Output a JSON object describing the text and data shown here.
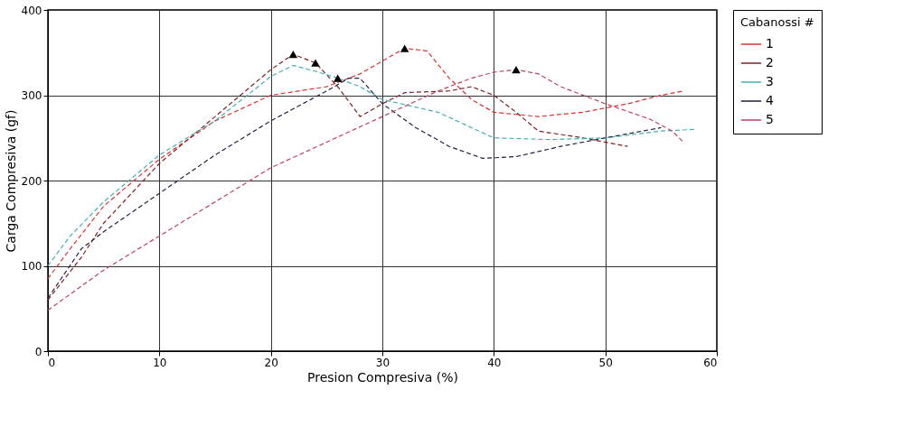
{
  "chart_data": {
    "type": "line",
    "xlabel": "Presion Compresiva (%)",
    "ylabel": "Carga Compresiva (gf)",
    "legend_title": "Cabanossi #",
    "xlim": [
      0,
      60
    ],
    "xticks": [
      0,
      10,
      20,
      30,
      40,
      50,
      60
    ],
    "ylim": [
      0,
      400
    ],
    "yticks": [
      0,
      100,
      200,
      300,
      400
    ],
    "grid": true,
    "legend": "right",
    "line_style": "dashed",
    "marker": "none",
    "series": [
      {
        "name": "1",
        "color": "#e03030",
        "x": [
          0,
          2,
          5,
          10,
          15,
          20,
          25,
          28,
          30,
          32,
          34,
          36,
          38,
          40,
          44,
          48,
          52,
          55,
          57
        ],
        "values": [
          85,
          120,
          170,
          225,
          270,
          300,
          310,
          325,
          340,
          355,
          352,
          320,
          295,
          280,
          275,
          280,
          290,
          300,
          305
        ]
      },
      {
        "name": "2",
        "color": "#802020",
        "x": [
          0,
          3,
          5,
          10,
          15,
          20,
          22,
          24,
          26,
          28,
          30,
          32,
          36,
          38,
          40,
          42,
          44,
          48,
          52
        ],
        "values": [
          60,
          110,
          150,
          220,
          275,
          330,
          348,
          338,
          310,
          275,
          290,
          303,
          305,
          310,
          300,
          280,
          258,
          250,
          240
        ]
      },
      {
        "name": "3",
        "color": "#40b0b0",
        "x": [
          0,
          2,
          5,
          10,
          15,
          20,
          22,
          24,
          26,
          28,
          30,
          35,
          40,
          45,
          50,
          55,
          58
        ],
        "values": [
          100,
          135,
          175,
          230,
          270,
          322,
          335,
          328,
          320,
          310,
          295,
          280,
          250,
          248,
          250,
          258,
          260
        ]
      },
      {
        "name": "4",
        "color": "#202040",
        "x": [
          0,
          3,
          5,
          10,
          15,
          20,
          25,
          27,
          28,
          30,
          33,
          36,
          39,
          42,
          46,
          50,
          55
        ],
        "values": [
          62,
          120,
          140,
          185,
          230,
          270,
          305,
          320,
          320,
          290,
          262,
          240,
          226,
          228,
          240,
          250,
          262
        ]
      },
      {
        "name": "5",
        "color": "#c04060",
        "x": [
          0,
          5,
          10,
          15,
          20,
          25,
          30,
          35,
          38,
          40,
          42,
          44,
          46,
          50,
          54,
          56,
          57
        ],
        "values": [
          48,
          95,
          135,
          175,
          215,
          245,
          275,
          305,
          320,
          327,
          330,
          325,
          310,
          290,
          272,
          258,
          245
        ]
      },
      {
        "type": "scatter",
        "marker": "triangle",
        "color": "#000000",
        "x": [
          22,
          24,
          26,
          32,
          42
        ],
        "values": [
          348,
          338,
          320,
          355,
          330
        ]
      }
    ]
  }
}
